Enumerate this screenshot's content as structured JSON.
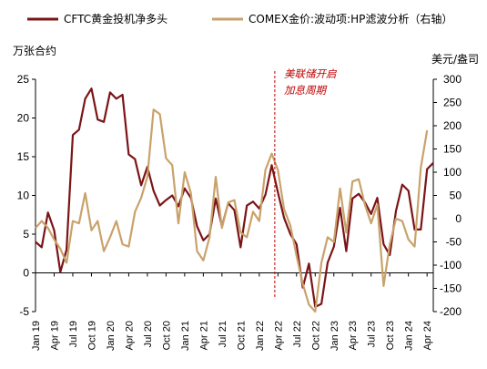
{
  "colors": {
    "series1": "#7b1416",
    "series2": "#c9a26b",
    "annotation": "#c00000",
    "axis": "#000000"
  },
  "chart_data": {
    "type": "line",
    "left_unit": "万张合约",
    "right_unit": "美元/盎司",
    "y_left": {
      "min": -5,
      "max": 25,
      "ticks": [
        -5,
        0,
        5,
        10,
        15,
        20,
        25
      ]
    },
    "y_right": {
      "min": -200,
      "max": 300,
      "ticks": [
        -200,
        -150,
        -100,
        -50,
        0,
        50,
        100,
        150,
        200,
        250,
        300
      ]
    },
    "x_labels": [
      "Jan 19",
      "Apr 19",
      "Jul 19",
      "Oct 19",
      "Jan 20",
      "Apr 20",
      "Jul 20",
      "Oct 20",
      "Jan 21",
      "Apr 21",
      "Jul 21",
      "Oct 21",
      "Jan 22",
      "Apr 22",
      "Jul 22",
      "Oct 22",
      "Jan 23",
      "Apr 23",
      "Jul 23",
      "Oct 23",
      "Jan 24",
      "Apr 24"
    ],
    "months_per_label": 3,
    "legend": [
      "CFTC黄金投机净多头",
      "COMEX金价:波动项:HP滤波分析（右轴）"
    ],
    "annotation": {
      "lines": [
        "美联储开启",
        "加息周期"
      ],
      "x_month_index": 38.5
    },
    "series": [
      {
        "name": "CFTC黄金投机净多头",
        "axis": "left",
        "values": [
          4.0,
          3.3,
          7.8,
          5.5,
          0.1,
          3.0,
          17.8,
          18.5,
          22.5,
          23.8,
          19.8,
          19.5,
          23.3,
          22.5,
          23.0,
          15.3,
          14.7,
          11.3,
          13.7,
          10.6,
          8.7,
          9.4,
          10.0,
          8.6,
          10.9,
          9.7,
          6.0,
          4.2,
          5.0,
          9.6,
          6.0,
          9.0,
          8.1,
          3.3,
          8.7,
          9.2,
          8.3,
          10.1,
          13.9,
          10.4,
          7.1,
          5.0,
          3.7,
          -1.9,
          1.2,
          -4.4,
          -4.0,
          1.3,
          3.4,
          8.4,
          2.8,
          9.6,
          10.2,
          9.1,
          7.6,
          9.7,
          3.7,
          2.3,
          8.0,
          11.4,
          10.6,
          5.6,
          5.6,
          13.4,
          14.2
        ]
      },
      {
        "name": "COMEX金价:波动项:HP滤波分析（右轴）",
        "axis": "right",
        "values": [
          -20,
          -5,
          -20,
          -45,
          -65,
          -95,
          -5,
          -10,
          55,
          -25,
          -5,
          -70,
          -40,
          -5,
          -55,
          -60,
          15,
          45,
          90,
          235,
          225,
          130,
          115,
          -10,
          100,
          55,
          -70,
          -90,
          -40,
          90,
          -20,
          35,
          40,
          -30,
          -40,
          15,
          -5,
          105,
          140,
          105,
          20,
          -15,
          -80,
          -140,
          -185,
          -200,
          -95,
          -40,
          -50,
          65,
          -30,
          80,
          85,
          30,
          -10,
          30,
          -145,
          -55,
          0,
          -5,
          -45,
          -60,
          110,
          190
        ]
      }
    ]
  }
}
